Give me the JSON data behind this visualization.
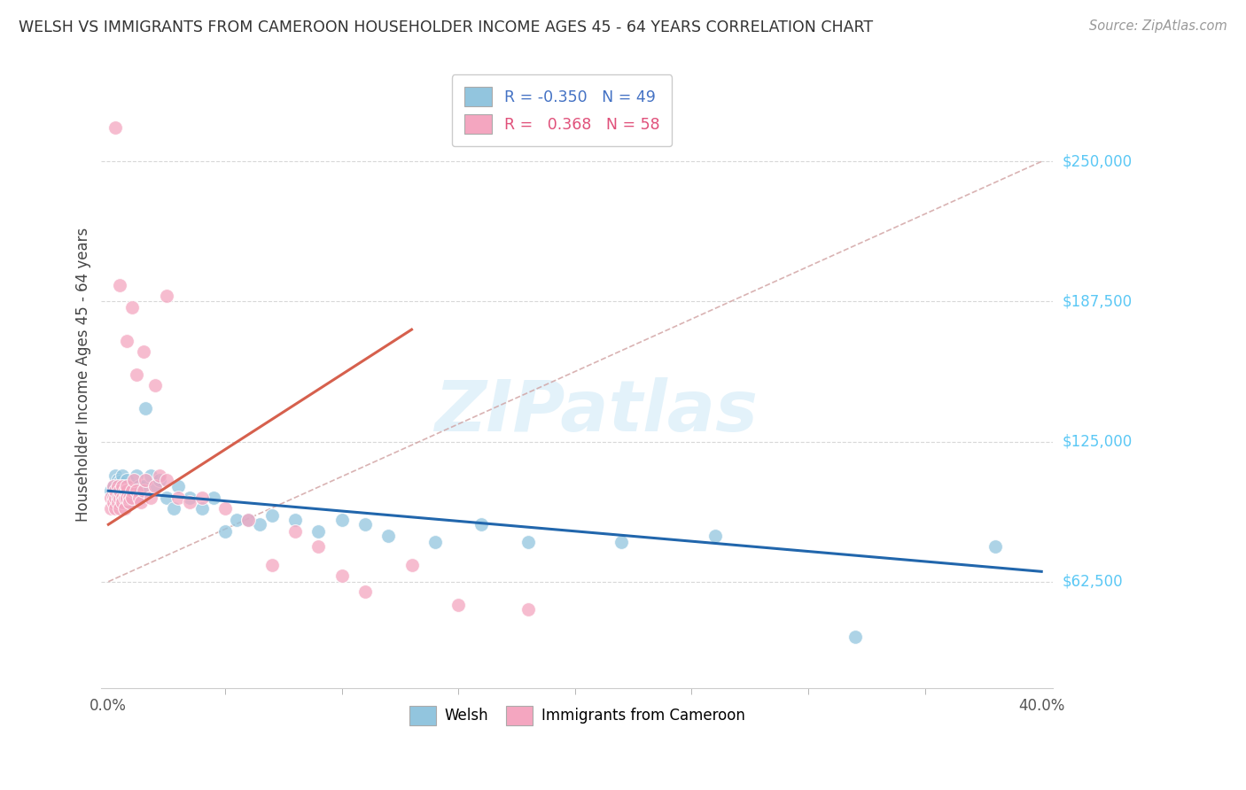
{
  "title": "WELSH VS IMMIGRANTS FROM CAMEROON HOUSEHOLDER INCOME AGES 45 - 64 YEARS CORRELATION CHART",
  "source": "Source: ZipAtlas.com",
  "ylabel": "Householder Income Ages 45 - 64 years",
  "y_ticks": [
    62500,
    125000,
    187500,
    250000
  ],
  "y_tick_labels": [
    "$62,500",
    "$125,000",
    "$187,500",
    "$250,000"
  ],
  "legend_top_labels": [
    "R = -0.350   N = 49",
    "R =   0.368   N = 58"
  ],
  "legend_bottom": [
    "Welsh",
    "Immigrants from Cameroon"
  ],
  "watermark": "ZIPatlas",
  "blue_color": "#92c5de",
  "pink_color": "#f4a6c0",
  "blue_line_color": "#2166ac",
  "pink_line_color": "#d6604d",
  "diag_line_color": "#d0a0a0",
  "welsh_x": [
    0.001,
    0.002,
    0.003,
    0.004,
    0.004,
    0.005,
    0.005,
    0.006,
    0.006,
    0.007,
    0.007,
    0.008,
    0.008,
    0.009,
    0.009,
    0.01,
    0.01,
    0.011,
    0.012,
    0.013,
    0.014,
    0.015,
    0.016,
    0.018,
    0.02,
    0.022,
    0.025,
    0.028,
    0.03,
    0.035,
    0.04,
    0.045,
    0.05,
    0.055,
    0.06,
    0.065,
    0.07,
    0.08,
    0.09,
    0.1,
    0.11,
    0.12,
    0.14,
    0.16,
    0.18,
    0.22,
    0.26,
    0.32,
    0.38
  ],
  "welsh_y": [
    103000,
    105000,
    110000,
    108000,
    100000,
    107000,
    98000,
    103000,
    110000,
    105000,
    100000,
    103000,
    108000,
    100000,
    98000,
    105000,
    102000,
    100000,
    110000,
    105000,
    100000,
    105000,
    140000,
    110000,
    105000,
    108000,
    100000,
    95000,
    105000,
    100000,
    95000,
    100000,
    85000,
    90000,
    90000,
    88000,
    92000,
    90000,
    85000,
    90000,
    88000,
    83000,
    80000,
    88000,
    80000,
    80000,
    83000,
    38000,
    78000
  ],
  "cameroon_x": [
    0.001,
    0.001,
    0.002,
    0.002,
    0.002,
    0.003,
    0.003,
    0.003,
    0.004,
    0.004,
    0.004,
    0.005,
    0.005,
    0.005,
    0.006,
    0.006,
    0.006,
    0.007,
    0.007,
    0.007,
    0.008,
    0.008,
    0.008,
    0.009,
    0.009,
    0.01,
    0.01,
    0.011,
    0.012,
    0.013,
    0.014,
    0.015,
    0.016,
    0.018,
    0.02,
    0.022,
    0.025,
    0.03,
    0.035,
    0.04,
    0.05,
    0.06,
    0.07,
    0.08,
    0.09,
    0.1,
    0.11,
    0.13,
    0.15,
    0.18,
    0.003,
    0.005,
    0.008,
    0.01,
    0.012,
    0.015,
    0.02,
    0.025
  ],
  "cameroon_y": [
    100000,
    95000,
    100000,
    98000,
    105000,
    100000,
    103000,
    95000,
    100000,
    98000,
    105000,
    100000,
    103000,
    95000,
    105000,
    100000,
    98000,
    100000,
    103000,
    95000,
    103000,
    100000,
    105000,
    100000,
    98000,
    103000,
    100000,
    108000,
    103000,
    100000,
    98000,
    103000,
    108000,
    100000,
    105000,
    110000,
    108000,
    100000,
    98000,
    100000,
    95000,
    90000,
    70000,
    85000,
    78000,
    65000,
    58000,
    70000,
    52000,
    50000,
    265000,
    195000,
    170000,
    185000,
    155000,
    165000,
    150000,
    190000
  ]
}
